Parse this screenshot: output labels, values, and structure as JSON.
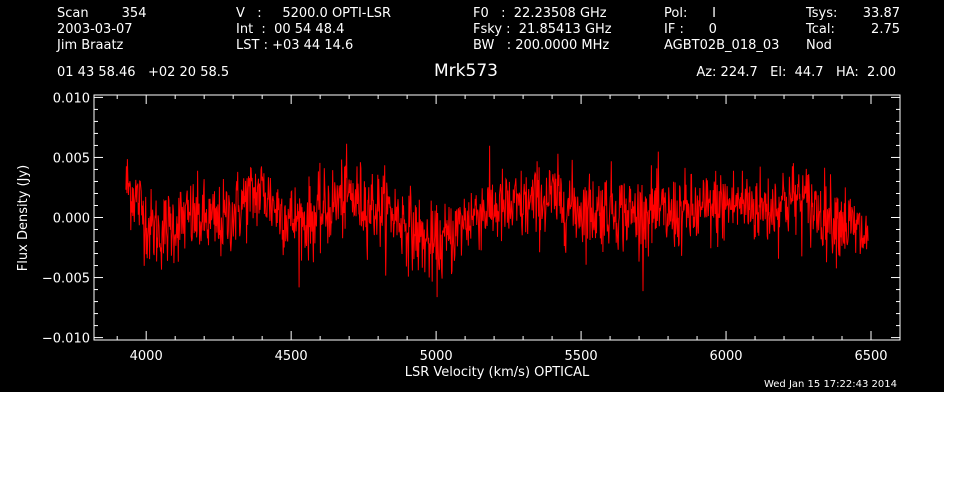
{
  "header": {
    "col1": [
      "Scan        354",
      "2003-03-07",
      "Jim Braatz"
    ],
    "col2": [
      "V   :     5200.0 OPTI-LSR",
      "Int  :  00 54 48.4",
      "LST : +03 44 14.6"
    ],
    "col3": [
      "F0   :  22.23508 GHz",
      "Fsky :  21.85413 GHz",
      "BW   : 200.0000 MHz"
    ],
    "col4": [
      "Pol:      I",
      "IF :      0",
      "AGBT02B_018_03"
    ],
    "col5_labels": [
      "Tsys:",
      "Tcal:",
      "Nod"
    ],
    "col5_values": [
      "33.87",
      "2.75",
      ""
    ],
    "coords": "01 43 58.46   +02 20 58.5",
    "source": "Mrk573",
    "azelha": "Az: 224.7   El:  44.7   HA:  2.00",
    "timestamp": "Wed Jan 15 17:22:43 2014"
  },
  "colors": {
    "background": "#000000",
    "foreground": "#ffffff",
    "trace": "#ff0000"
  },
  "chart_data": {
    "type": "line",
    "xlabel": "LSR Velocity (km/s) OPTICAL",
    "ylabel": "Flux Density (Jy)",
    "xlim": [
      3820,
      6600
    ],
    "ylim": [
      -0.0102,
      0.0102
    ],
    "xticks": [
      4000,
      4500,
      5000,
      5500,
      6000,
      6500
    ],
    "xtick_labels": [
      "4000",
      "4500",
      "5000",
      "5500",
      "6000",
      "6500"
    ],
    "yticks": [
      -0.01,
      -0.005,
      0.0,
      0.005,
      0.01
    ],
    "ytick_labels": [
      "−0.010",
      "−0.005",
      "0.000",
      "0.005",
      "0.010"
    ],
    "grid": false,
    "series": [
      {
        "x": [
          3930,
          3970,
          4010,
          4050,
          4100,
          4150,
          4200,
          4250,
          4300,
          4350,
          4400,
          4450,
          4500,
          4550,
          4600,
          4650,
          4700,
          4750,
          4800,
          4850,
          4900,
          4950,
          5000,
          5050,
          5100,
          5150,
          5200,
          5250,
          5300,
          5350,
          5400,
          5450,
          5500,
          5550,
          5600,
          5650,
          5700,
          5750,
          5800,
          5850,
          5900,
          5950,
          6000,
          6050,
          6100,
          6150,
          6200,
          6250,
          6300,
          6350,
          6400,
          6450,
          6490
        ],
        "y": [
          0.0028,
          0.0015,
          -0.0008,
          -0.0012,
          -0.0005,
          0.0,
          -0.0002,
          -0.0006,
          0.0004,
          0.0016,
          0.0022,
          0.0008,
          -0.0002,
          -0.0003,
          0.0002,
          0.0012,
          0.0018,
          0.0012,
          0.0008,
          0.0004,
          -0.0006,
          -0.0018,
          -0.0026,
          -0.0016,
          -0.0003,
          0.0006,
          0.0008,
          0.0006,
          0.0009,
          0.0013,
          0.0016,
          0.0011,
          0.0007,
          0.0005,
          0.0009,
          0.0004,
          0.0002,
          0.0006,
          0.0001,
          0.0004,
          0.0003,
          0.0008,
          0.001,
          0.0012,
          0.0009,
          0.0007,
          0.0014,
          0.0016,
          0.0008,
          0.0002,
          -0.0002,
          -0.0012,
          -0.0018
        ],
        "noise_rms": 0.0016
      }
    ]
  }
}
